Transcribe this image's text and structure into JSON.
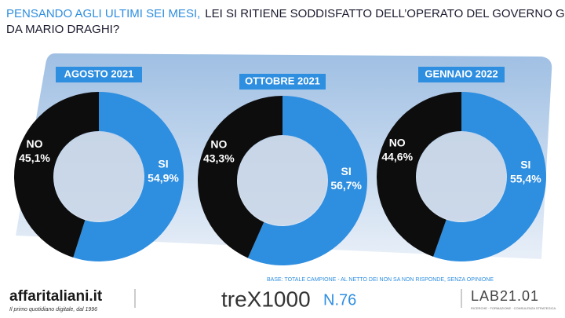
{
  "header": {
    "title_lead": "PENSANDO AGLI ULTIMI SEI MESI,",
    "title": "LEI SI RITIENE SODDISFATTO DELL’OPERATO DEL GOVERNO GUIDATO DA MARIO DRAGHI?"
  },
  "chart_data": [
    {
      "type": "pie",
      "title": "AGOSTO 2021",
      "categories": [
        "SI",
        "NO"
      ],
      "values": [
        54.9,
        45.1
      ],
      "value_labels": [
        "54,9%",
        "45,1%"
      ],
      "colors": [
        "#2e8ee0",
        "#0d0d0d"
      ]
    },
    {
      "type": "pie",
      "title": "OTTOBRE 2021",
      "categories": [
        "SI",
        "NO"
      ],
      "values": [
        56.7,
        43.3
      ],
      "value_labels": [
        "56,7%",
        "43,3%"
      ],
      "colors": [
        "#2e8ee0",
        "#0d0d0d"
      ]
    },
    {
      "type": "pie",
      "title": "GENNAIO 2022",
      "categories": [
        "SI",
        "NO"
      ],
      "values": [
        55.4,
        44.6
      ],
      "value_labels": [
        "55,4%",
        "44,6%"
      ],
      "colors": [
        "#2e8ee0",
        "#0d0d0d"
      ]
    }
  ],
  "footer": {
    "base": "BASE: TOTALE CAMPIONE - AL NETTO DEI NON SA NON RISPONDE, SENZA OPINIONE",
    "brand": "affaritaliani.it",
    "tagline": "Il primo quotidiano digitale, dal 1996",
    "survey": "treX1000",
    "number": "N.76",
    "lab": "LAB21.01",
    "lab_sub": "RICERCHE · FORMAZIONE · CONSULENZA STRATEGICA"
  }
}
